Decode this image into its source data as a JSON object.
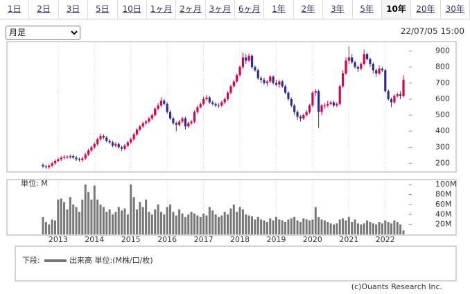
{
  "tabs": [
    "1日",
    "2日",
    "3日",
    "5日",
    "10日",
    "1ヶ月",
    "2ヶ月",
    "3ヶ月",
    "6ヶ月",
    "1年",
    "2年",
    "3年",
    "5年",
    "10年",
    "20年",
    "30年"
  ],
  "active_tab": 13,
  "period_select": "月足",
  "timestamp": "22/07/05 15:00",
  "copyright": "(c)Ouants Research Inc.",
  "chart_data": {
    "type": "candlestick",
    "up_color": "#e0004a",
    "down_color": "#2e2e8f",
    "categories": [
      null,
      null,
      null,
      null,
      null,
      "2013",
      null,
      null,
      null,
      null,
      null,
      null,
      null,
      null,
      null,
      null,
      null,
      "2014",
      null,
      null,
      null,
      null,
      null,
      null,
      null,
      null,
      null,
      null,
      null,
      "2015",
      null,
      null,
      null,
      null,
      null,
      null,
      null,
      null,
      null,
      null,
      null,
      "2016",
      null,
      null,
      null,
      null,
      null,
      null,
      null,
      null,
      null,
      null,
      null,
      "2017",
      null,
      null,
      null,
      null,
      null,
      null,
      null,
      null,
      null,
      null,
      null,
      "2018",
      null,
      null,
      null,
      null,
      null,
      null,
      null,
      null,
      null,
      null,
      null,
      "2019",
      null,
      null,
      null,
      null,
      null,
      null,
      null,
      null,
      null,
      null,
      null,
      "2020",
      null,
      null,
      null,
      null,
      null,
      null,
      null,
      null,
      null,
      null,
      null,
      "2021",
      null,
      null,
      null,
      null,
      null,
      null,
      null,
      null,
      null,
      null,
      null,
      "2022",
      null,
      null,
      null,
      null,
      null,
      null
    ],
    "open": [
      190,
      180,
      175,
      185,
      200,
      215,
      225,
      235,
      240,
      238,
      245,
      235,
      225,
      220,
      230,
      255,
      280,
      300,
      320,
      350,
      370,
      360,
      340,
      330,
      310,
      320,
      300,
      290,
      310,
      330,
      350,
      380,
      410,
      430,
      450,
      460,
      480,
      500,
      540,
      560,
      590,
      570,
      520,
      480,
      450,
      440,
      460,
      480,
      430,
      450,
      460,
      520,
      550,
      570,
      600,
      610,
      580,
      570,
      560,
      560,
      580,
      600,
      640,
      680,
      710,
      750,
      800,
      860,
      840,
      870,
      800,
      780,
      730,
      720,
      700,
      710,
      740,
      700,
      690,
      710,
      680,
      640,
      600,
      560,
      520,
      490,
      480,
      500,
      520,
      560,
      640,
      650,
      520,
      560,
      560,
      570,
      580,
      560,
      570,
      680,
      760,
      840,
      860,
      830,
      800,
      790,
      820,
      880,
      850,
      820,
      780,
      760,
      790,
      780,
      650,
      600,
      580,
      620,
      630,
      620
    ],
    "high": [
      200,
      190,
      195,
      210,
      225,
      235,
      245,
      250,
      250,
      255,
      255,
      245,
      235,
      240,
      265,
      290,
      310,
      330,
      360,
      385,
      380,
      370,
      350,
      340,
      330,
      330,
      310,
      320,
      340,
      360,
      390,
      420,
      440,
      460,
      470,
      490,
      510,
      550,
      575,
      610,
      600,
      580,
      530,
      490,
      460,
      470,
      490,
      490,
      460,
      470,
      530,
      560,
      580,
      615,
      625,
      620,
      590,
      580,
      575,
      590,
      610,
      650,
      690,
      720,
      760,
      810,
      890,
      880,
      885,
      880,
      810,
      790,
      745,
      735,
      720,
      750,
      750,
      720,
      720,
      720,
      690,
      650,
      610,
      570,
      530,
      500,
      510,
      530,
      570,
      650,
      665,
      660,
      570,
      575,
      590,
      590,
      590,
      580,
      690,
      780,
      860,
      930,
      880,
      840,
      810,
      830,
      910,
      890,
      860,
      830,
      790,
      810,
      800,
      790,
      660,
      610,
      630,
      640,
      650,
      750
    ],
    "low": [
      170,
      165,
      165,
      175,
      190,
      205,
      215,
      225,
      228,
      228,
      225,
      215,
      210,
      210,
      220,
      245,
      270,
      290,
      310,
      340,
      350,
      330,
      320,
      300,
      300,
      290,
      275,
      280,
      300,
      320,
      340,
      370,
      400,
      420,
      440,
      450,
      470,
      490,
      530,
      550,
      560,
      510,
      470,
      440,
      400,
      430,
      450,
      410,
      420,
      440,
      450,
      510,
      540,
      560,
      590,
      570,
      560,
      550,
      545,
      550,
      570,
      590,
      630,
      670,
      700,
      740,
      790,
      820,
      830,
      790,
      770,
      720,
      700,
      690,
      680,
      700,
      690,
      680,
      670,
      670,
      630,
      590,
      550,
      500,
      470,
      460,
      470,
      490,
      510,
      550,
      620,
      420,
      500,
      540,
      550,
      560,
      550,
      550,
      560,
      670,
      750,
      820,
      820,
      790,
      770,
      780,
      810,
      840,
      800,
      760,
      740,
      750,
      770,
      640,
      590,
      550,
      570,
      610,
      600,
      610
    ],
    "close": [
      180,
      175,
      185,
      200,
      215,
      225,
      235,
      240,
      238,
      245,
      235,
      225,
      220,
      230,
      255,
      280,
      300,
      320,
      350,
      370,
      360,
      340,
      330,
      310,
      320,
      300,
      290,
      310,
      330,
      350,
      380,
      410,
      430,
      450,
      460,
      480,
      500,
      540,
      560,
      590,
      570,
      520,
      480,
      450,
      440,
      460,
      480,
      430,
      450,
      460,
      520,
      550,
      570,
      600,
      610,
      580,
      570,
      560,
      560,
      580,
      600,
      640,
      680,
      710,
      750,
      800,
      860,
      840,
      870,
      800,
      780,
      730,
      720,
      700,
      710,
      740,
      700,
      690,
      710,
      680,
      640,
      600,
      560,
      520,
      490,
      480,
      500,
      520,
      560,
      640,
      650,
      520,
      560,
      560,
      570,
      580,
      560,
      570,
      680,
      760,
      840,
      860,
      830,
      800,
      790,
      820,
      880,
      850,
      820,
      780,
      760,
      790,
      780,
      650,
      600,
      580,
      620,
      630,
      620,
      720
    ],
    "ylim": [
      150,
      950
    ],
    "yticks": [
      200,
      300,
      400,
      500,
      600,
      700,
      800,
      900
    ],
    "volume": {
      "name": "出来高 単位:(M株/口/枚)",
      "lower_label": "下段:",
      "unit_label": "単位: M",
      "color": "#777777",
      "values": [
        35,
        25,
        20,
        30,
        28,
        70,
        72,
        65,
        50,
        75,
        60,
        55,
        45,
        70,
        100,
        85,
        70,
        98,
        70,
        60,
        55,
        45,
        50,
        40,
        45,
        55,
        48,
        52,
        40,
        100,
        75,
        50,
        65,
        55,
        70,
        45,
        40,
        50,
        60,
        45,
        40,
        55,
        60,
        45,
        38,
        50,
        42,
        35,
        40,
        45,
        42,
        38,
        35,
        42,
        38,
        55,
        48,
        40,
        35,
        38,
        45,
        40,
        52,
        60,
        45,
        55,
        50,
        40,
        38,
        36,
        30,
        35,
        30,
        28,
        25,
        32,
        28,
        35,
        30,
        28,
        25,
        30,
        32,
        35,
        28,
        25,
        32,
        30,
        28,
        30,
        55,
        35,
        30,
        28,
        25,
        22,
        20,
        22,
        30,
        32,
        28,
        35,
        25,
        30,
        22,
        20,
        22,
        28,
        25,
        22,
        20,
        25,
        22,
        28,
        25,
        22,
        28,
        25,
        20,
        8
      ],
      "ylim": [
        0,
        110
      ],
      "yticks": [
        {
          "value": 20,
          "label": "20M"
        },
        {
          "value": 40,
          "label": "40M"
        },
        {
          "value": 60,
          "label": "60M"
        },
        {
          "value": 80,
          "label": "80M"
        },
        {
          "value": 100,
          "label": "100M"
        }
      ]
    }
  }
}
